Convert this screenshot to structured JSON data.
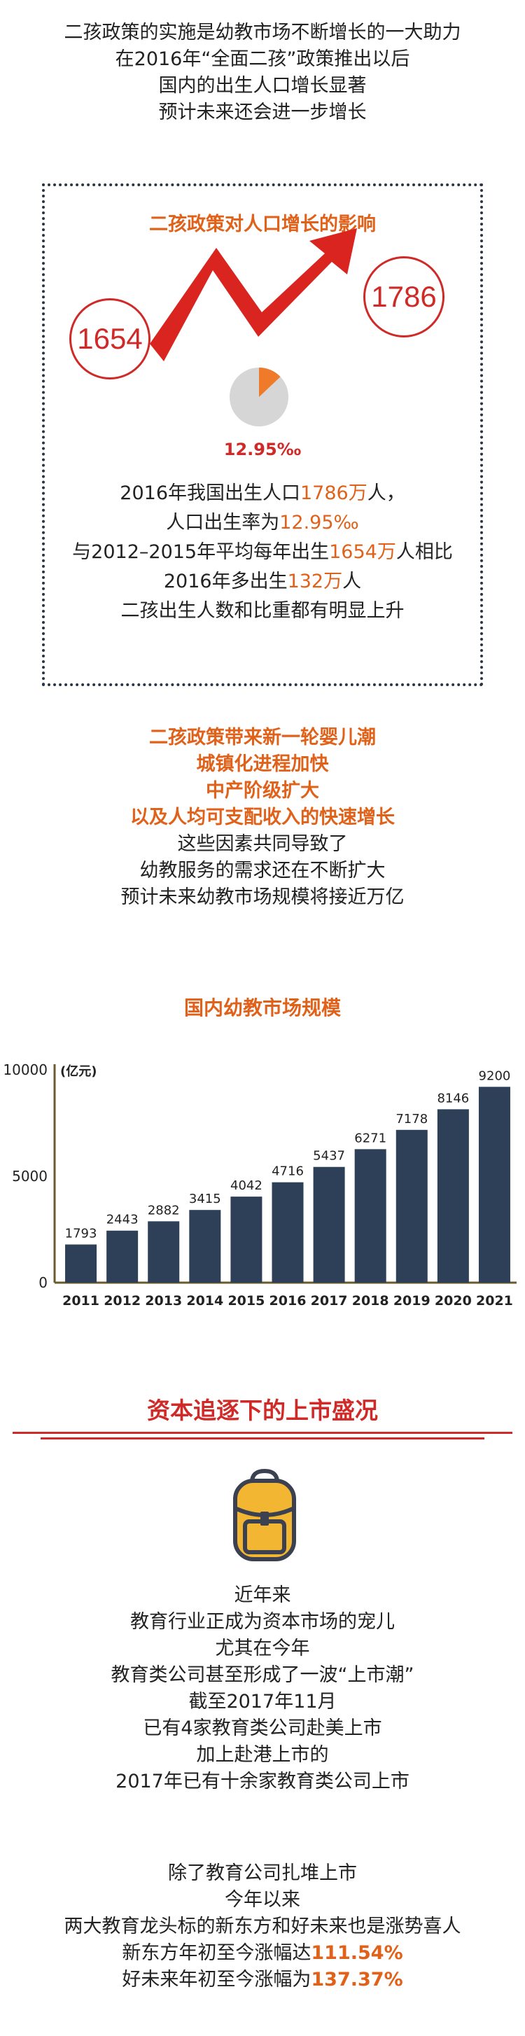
{
  "intro": [
    "二孩政策的实施是幼教市场不断增长的一大助力",
    "在2016年“全面二孩”政策推出以后",
    "国内的出生人口增长显著",
    "预计未来还会进一步增长"
  ],
  "box": {
    "title": "二孩政策对人口增长的影响",
    "left_value": "1654",
    "right_value": "1786",
    "pie_label": "12.95‰",
    "pie_fraction": 0.1295,
    "line1": {
      "a": "2016年我国出生人口",
      "b": "1786万",
      "c": "人，"
    },
    "line2": {
      "a": "人口出生率为",
      "b": "12.95‰"
    },
    "line3": {
      "a": "与2012–2015年平均每年出生",
      "b": "1654万",
      "c": "人相比"
    },
    "line4": {
      "a": "2016年多出生",
      "b": "132万",
      "c": "人"
    },
    "line5": "二孩出生人数和比重都有明显上升"
  },
  "mid": {
    "orange_lines": [
      "二孩政策带来新一轮婴儿潮",
      "城镇化进程加快",
      "中产阶级扩大",
      "以及人均可支配收入的快速增长"
    ],
    "black_lines": [
      "这些因素共同导致了",
      "幼教服务的需求还在不断扩大",
      "预计未来幼教市场规模将接近万亿"
    ]
  },
  "chart_data": {
    "type": "bar",
    "title": "国内幼教市场规模",
    "unit_label": "(亿元)",
    "categories": [
      "2011",
      "2012",
      "2013",
      "2014",
      "2015",
      "2016",
      "2017",
      "2018",
      "2019",
      "2020",
      "2021"
    ],
    "values": [
      1793,
      2443,
      2882,
      3415,
      4042,
      4716,
      5437,
      6271,
      7178,
      8146,
      9200
    ],
    "yticks": [
      0,
      5000,
      10000
    ],
    "ylim": [
      0,
      10000
    ],
    "colors": {
      "bar": "#2e3f58",
      "axis": "#6b5a2e"
    }
  },
  "section": {
    "title": "资本追逐下的上市盛况"
  },
  "outro1": [
    "近年来",
    "教育行业正成为资本市场的宠儿",
    "尤其在今年",
    "教育类公司甚至形成了一波“上市潮”",
    "截至2017年11月",
    "已有4家教育类公司赴美上市",
    "加上赴港上市的",
    "2017年已有十余家教育类公司上市"
  ],
  "outro2": {
    "lines": [
      "除了教育公司扎堆上市",
      "今年以来",
      "两大教育龙头标的新东方和好未来也是涨势喜人"
    ],
    "l4": {
      "a": "新东方年初至今涨幅达",
      "b": "111.54%"
    },
    "l5": {
      "a": "好未来年初至今涨幅为",
      "b": "137.37%"
    }
  },
  "colors": {
    "accent_orange": "#e0621a",
    "accent_red": "#cf2a27"
  }
}
